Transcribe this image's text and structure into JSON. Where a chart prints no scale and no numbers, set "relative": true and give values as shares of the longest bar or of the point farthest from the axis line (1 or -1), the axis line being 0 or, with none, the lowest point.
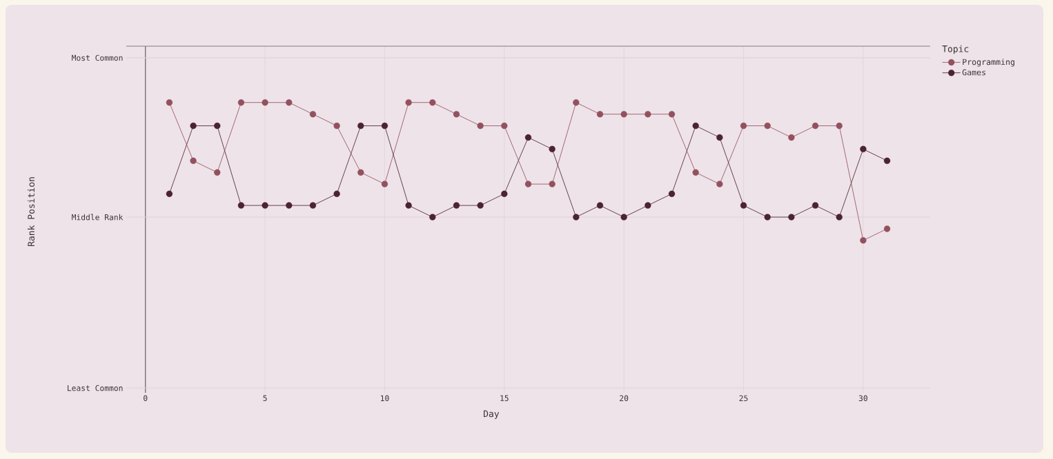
{
  "chart_data": {
    "type": "line",
    "relative": true,
    "xlabel": "Day",
    "legend_title": "Topic",
    "annotations": [
      "Rank Position"
    ],
    "x": [
      1,
      2,
      3,
      4,
      5,
      6,
      7,
      8,
      9,
      10,
      11,
      12,
      13,
      14,
      15,
      16,
      17,
      18,
      19,
      20,
      21,
      22,
      23,
      24,
      25,
      26,
      27,
      28,
      29,
      30,
      31
    ],
    "series": [
      {
        "name": "Programming",
        "color": "#93515f",
        "values": [
          -0.29,
          -0.59,
          -0.65,
          -0.29,
          -0.29,
          -0.29,
          -0.35,
          -0.41,
          -0.65,
          -0.71,
          -0.29,
          -0.29,
          -0.35,
          -0.41,
          -0.41,
          -0.71,
          -0.71,
          -0.29,
          -0.35,
          -0.35,
          -0.35,
          -0.35,
          -0.65,
          -0.71,
          -0.41,
          -0.41,
          -0.47,
          -0.41,
          -0.41,
          -1,
          -0.94
        ]
      },
      {
        "name": "Games",
        "color": "#4b2331",
        "values": [
          -0.76,
          -0.41,
          -0.41,
          -0.82,
          -0.82,
          -0.82,
          -0.82,
          -0.76,
          -0.41,
          -0.41,
          -0.82,
          -0.88,
          -0.82,
          -0.82,
          -0.76,
          -0.47,
          -0.53,
          -0.88,
          -0.82,
          -0.88,
          -0.82,
          -0.76,
          -0.41,
          -0.47,
          -0.82,
          -0.88,
          -0.88,
          -0.82,
          -0.88,
          -0.53,
          -0.59
        ]
      }
    ],
    "xlim": [
      -0.8,
      32.8
    ],
    "xticks": [
      0,
      5,
      10,
      15,
      20,
      25,
      30
    ],
    "grid": "x",
    "legend": "top right",
    "marker": "circle",
    "line_style": "solid",
    "ref_lines": [
      {
        "axis": "x",
        "value": 0,
        "color": "#6b6367"
      },
      {
        "axis": "y",
        "value": -0.06,
        "label": "Most Common",
        "color": "#e0d3d9"
      },
      {
        "axis": "y",
        "value": -0.88,
        "label": "Middle Rank",
        "color": "#e0d3d9"
      },
      {
        "axis": "y",
        "value": -1.76,
        "label": "Least Common",
        "color": "#e0d3d9"
      }
    ]
  }
}
